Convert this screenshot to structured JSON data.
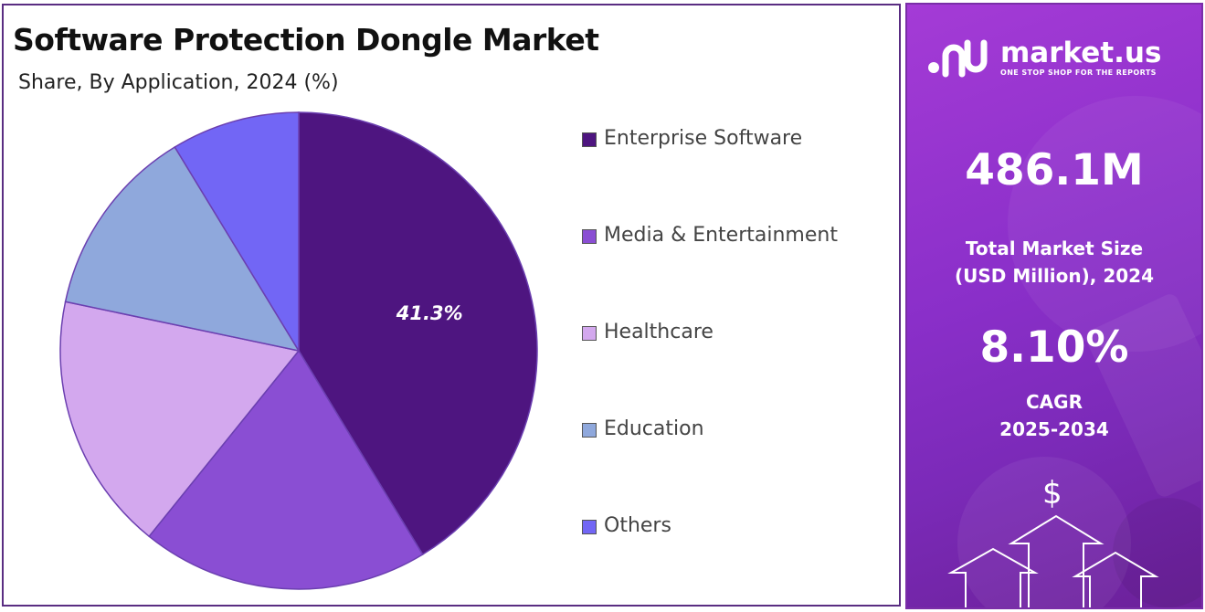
{
  "title": "Software Protection Dongle Market",
  "subtitle": "Share, By Application, 2024 (%)",
  "chart_data": {
    "type": "pie",
    "title": "Software Protection Dongle Market",
    "subtitle": "Share, By Application, 2024 (%)",
    "categories": [
      "Enterprise Software",
      "Media & Entertainment",
      "Healthcare",
      "Education",
      "Others"
    ],
    "values": [
      41.3,
      19.5,
      17.5,
      13.0,
      8.7
    ],
    "colors": [
      "#4e1580",
      "#8a4ed3",
      "#d3a8ee",
      "#8fa8dc",
      "#7266f5"
    ],
    "data_labels": [
      "41.3%",
      "",
      "",
      "",
      ""
    ],
    "legend_position": "right"
  },
  "sidebar": {
    "brand": "market.us",
    "tagline": "ONE STOP SHOP FOR THE REPORTS",
    "market_size_value": "486.1M",
    "market_size_label_line1": "Total Market Size",
    "market_size_label_line2": "(USD Million), 2024",
    "cagr_value": "8.10%",
    "cagr_label_line1": "CAGR",
    "cagr_label_line2": "2025-2034",
    "dollar_symbol": "$"
  }
}
